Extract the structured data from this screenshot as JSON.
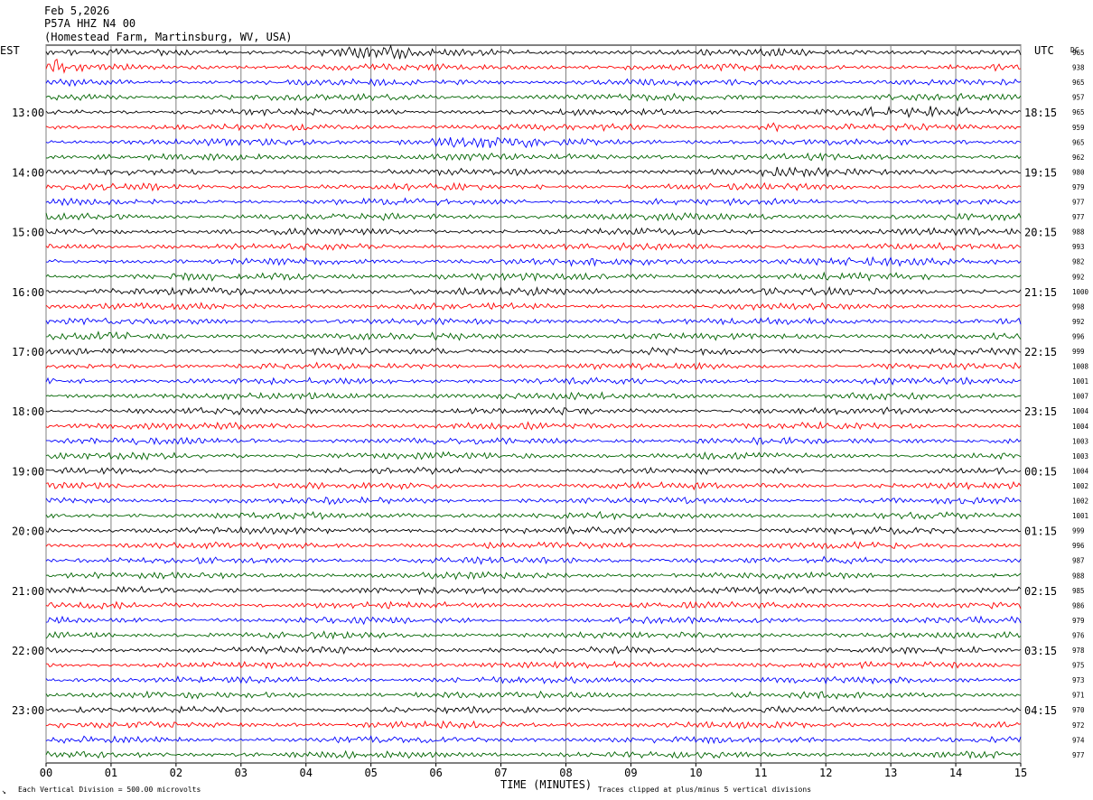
{
  "header": {
    "date": "Feb 5,2026",
    "station": "P57A HHZ N4 00",
    "location": "(Homestead Farm, Martinsburg, WV, USA)"
  },
  "labels": {
    "left_tz": "EST",
    "right_tz": "UTC",
    "dc": "DC",
    "xlabel": "TIME (MINUTES)",
    "scale_note": "Each Vertical Division =  500.00 microvolts",
    "clip_note": "Traces clipped at plus/minus 5 vertical divisions"
  },
  "colors": {
    "cycle": [
      "#000000",
      "#ff0000",
      "#0000ff",
      "#006400"
    ],
    "grid": "#808080"
  },
  "chart_data": {
    "type": "line",
    "title": "P57A HHZ N4 00",
    "xlabel": "TIME (MINUTES)",
    "xlim": [
      0,
      15
    ],
    "x_ticks": [
      "00",
      "01",
      "02",
      "03",
      "04",
      "05",
      "06",
      "07",
      "08",
      "09",
      "10",
      "11",
      "12",
      "13",
      "14",
      "15"
    ],
    "trace_count": 48,
    "traces_per_hour": 4,
    "left_hour_labels": [
      "13:00",
      "14:00",
      "15:00",
      "16:00",
      "17:00",
      "18:00",
      "19:00",
      "20:00",
      "21:00",
      "22:00",
      "23:00"
    ],
    "right_hour_labels": [
      "18:15",
      "19:15",
      "20:15",
      "21:15",
      "22:15",
      "23:15",
      "00:15",
      "01:15",
      "02:15",
      "03:15",
      "04:15"
    ],
    "dc_offsets": [
      965,
      938,
      965,
      957,
      965,
      959,
      965,
      962,
      980,
      979,
      977,
      977,
      988,
      993,
      982,
      992,
      1000,
      998,
      992,
      996,
      999,
      1008,
      1001,
      1007,
      1004,
      1004,
      1003,
      1003,
      1004,
      1002,
      1002,
      1001,
      999,
      996,
      987,
      988,
      985,
      986,
      979,
      976,
      978,
      975,
      973,
      971,
      970,
      972,
      974,
      977
    ],
    "events": [
      {
        "trace": 0,
        "from_min": 4.2,
        "to_min": 5.6,
        "level": 2.0
      },
      {
        "trace": 1,
        "from_min": 0.0,
        "to_min": 0.3,
        "level": 3.2
      },
      {
        "trace": 4,
        "from_min": 11.8,
        "to_min": 14.2,
        "level": 1.6
      },
      {
        "trace": 5,
        "from_min": 10.9,
        "to_min": 11.3,
        "level": 2.4
      },
      {
        "trace": 6,
        "from_min": 5.3,
        "to_min": 7.8,
        "level": 1.8
      },
      {
        "trace": 7,
        "from_min": 9.1,
        "to_min": 9.5,
        "level": 1.6
      },
      {
        "trace": 8,
        "from_min": 10.8,
        "to_min": 14.5,
        "level": 1.3
      },
      {
        "trace": 14,
        "from_min": 8.0,
        "to_min": 14.8,
        "level": 1.2
      },
      {
        "trace": 15,
        "from_min": 0.0,
        "to_min": 15.0,
        "level": 1.1
      },
      {
        "trace": 16,
        "from_min": 0.0,
        "to_min": 15.0,
        "level": 1.1
      },
      {
        "trace": 18,
        "from_min": 8.5,
        "to_min": 8.9,
        "level": 1.5
      },
      {
        "trace": 19,
        "from_min": 0.8,
        "to_min": 1.4,
        "level": 1.3
      },
      {
        "trace": 19,
        "from_min": 6.0,
        "to_min": 6.5,
        "level": 1.3
      }
    ]
  }
}
